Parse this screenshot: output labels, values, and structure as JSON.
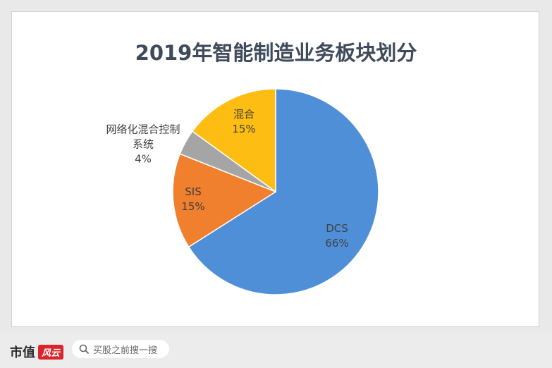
{
  "chart_data": {
    "type": "pie",
    "title": "2019年智能制造业务板块划分",
    "slices": [
      {
        "name": "DCS",
        "label": "DCS",
        "value_label": "66%",
        "value": 66,
        "color": "#4f8fd8"
      },
      {
        "name": "SIS",
        "label": "SIS",
        "value_label": "15%",
        "value": 15,
        "color": "#f07f2e"
      },
      {
        "name": "网络化混合控制系统",
        "label_line1": "网络化混合控制",
        "label_line2": "系统",
        "value_label": "4%",
        "value": 4,
        "color": "#a5a5a5"
      },
      {
        "name": "混合",
        "label": "混合",
        "value_label": "15%",
        "value": 15,
        "color": "#fdbd12"
      }
    ]
  },
  "footer": {
    "brand_text": "市值",
    "brand_badge": "风云",
    "search_icon": "search-icon",
    "search_text": "买股之前搜一搜"
  }
}
